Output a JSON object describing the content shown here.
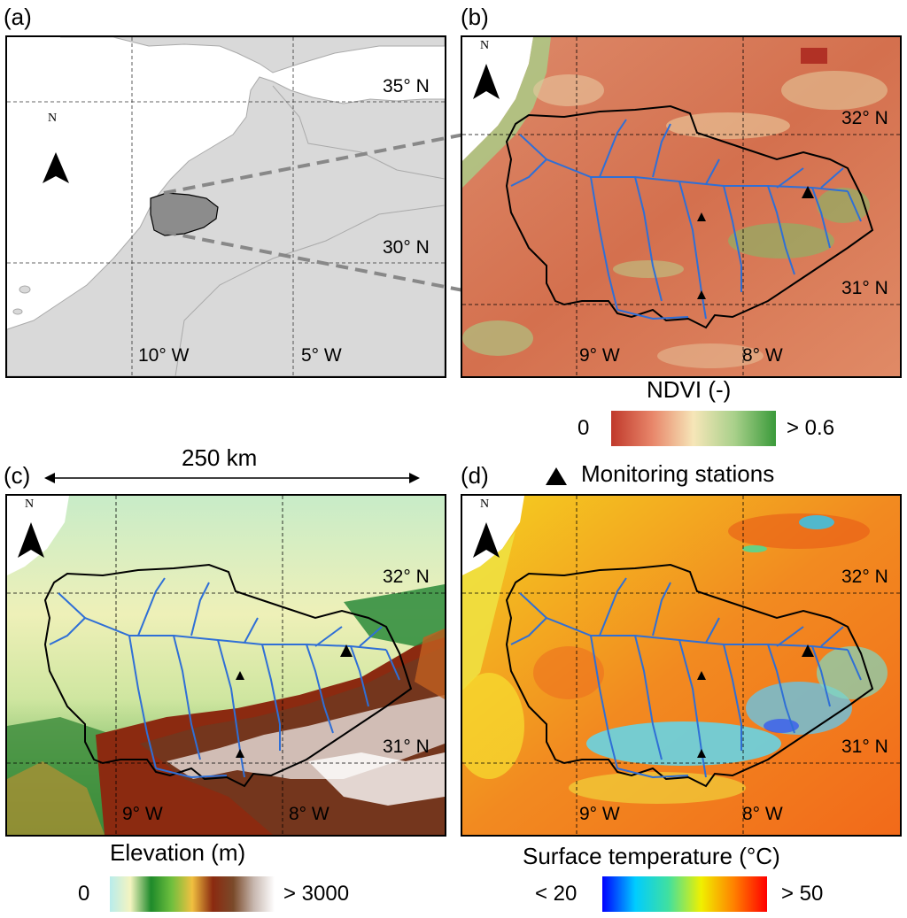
{
  "panels": {
    "a": {
      "label": "(a)",
      "lat_labels": [
        "35° N",
        "30° N"
      ],
      "lon_labels": [
        "10° W",
        "5° W"
      ],
      "north": "N"
    },
    "b": {
      "label": "(b)",
      "lat_labels": [
        "32° N",
        "31° N"
      ],
      "lon_labels": [
        "9° W",
        "8° W"
      ],
      "north": "N"
    },
    "c": {
      "label": "(c)",
      "lat_labels": [
        "32° N",
        "31° N"
      ],
      "lon_labels": [
        "9° W",
        "8° W"
      ],
      "north": "N"
    },
    "d": {
      "label": "(d)",
      "lat_labels": [
        "32° N",
        "31° N"
      ],
      "lon_labels": [
        "9° W",
        "8° W"
      ],
      "north": "N"
    }
  },
  "scale": {
    "label": "250 km"
  },
  "legend": {
    "stations_label": "Monitoring stations"
  },
  "colorbars": {
    "ndvi": {
      "title": "NDVI (-)",
      "min": "0",
      "max": "> 0.6",
      "colors": [
        "#c0392b",
        "#e8866a",
        "#f6e6b8",
        "#a8d08a",
        "#3a9a3a"
      ]
    },
    "elevation": {
      "title": "Elevation (m)",
      "min": "0",
      "max": "> 3000",
      "colors": [
        "#b8ecec",
        "#f4f4c0",
        "#1e8a2a",
        "#6fbf3e",
        "#f0c040",
        "#8b2a10",
        "#7a4a2a",
        "#c8b8b0",
        "#ffffff"
      ]
    },
    "temperature": {
      "title": "Surface temperature (°C)",
      "min": "< 20",
      "max": "> 50",
      "colors": [
        "#0000ff",
        "#00ccff",
        "#40e0a0",
        "#f0f000",
        "#ff8000",
        "#ff0000"
      ]
    }
  },
  "colors": {
    "ndvi_base": "#d9775a",
    "elev_base": "#cde8b0",
    "temp_base": "#f59a2a",
    "river": "#2f6fd6",
    "land_gray": "#d9d9d9",
    "basin_gray": "#8c8c8c"
  }
}
